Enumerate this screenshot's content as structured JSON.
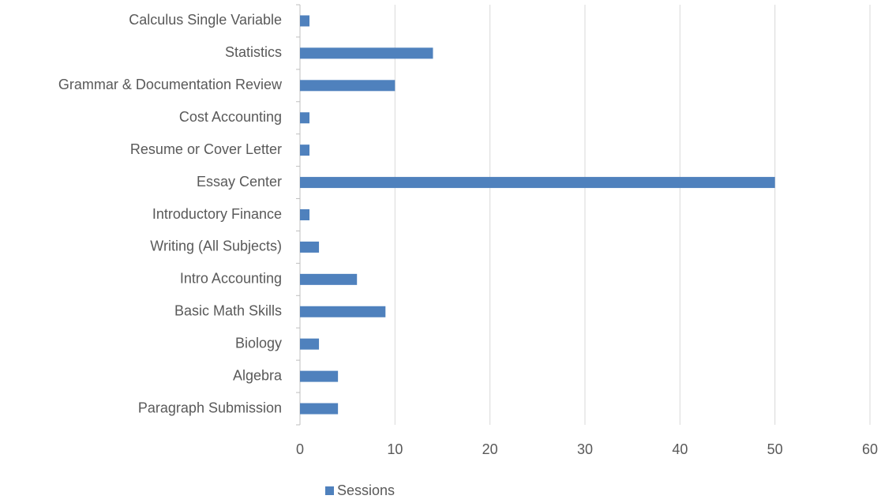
{
  "chart_data": {
    "type": "bar",
    "orientation": "horizontal",
    "categories": [
      "Calculus Single Variable",
      "Statistics",
      "Grammar & Documentation Review",
      "Cost Accounting",
      "Resume or Cover Letter",
      "Essay Center",
      "Introductory Finance",
      "Writing (All Subjects)",
      "Intro Accounting",
      "Basic Math Skills",
      "Biology",
      "Algebra",
      "Paragraph Submission"
    ],
    "series": [
      {
        "name": "Sessions",
        "color": "#4f81bd",
        "values": [
          1,
          14,
          10,
          1,
          1,
          50,
          1,
          2,
          6,
          9,
          2,
          4,
          4
        ]
      }
    ],
    "xlim": [
      0,
      60
    ],
    "xticks": [
      0,
      10,
      20,
      30,
      40,
      50,
      60
    ],
    "grid": true,
    "legend": "bottom"
  }
}
